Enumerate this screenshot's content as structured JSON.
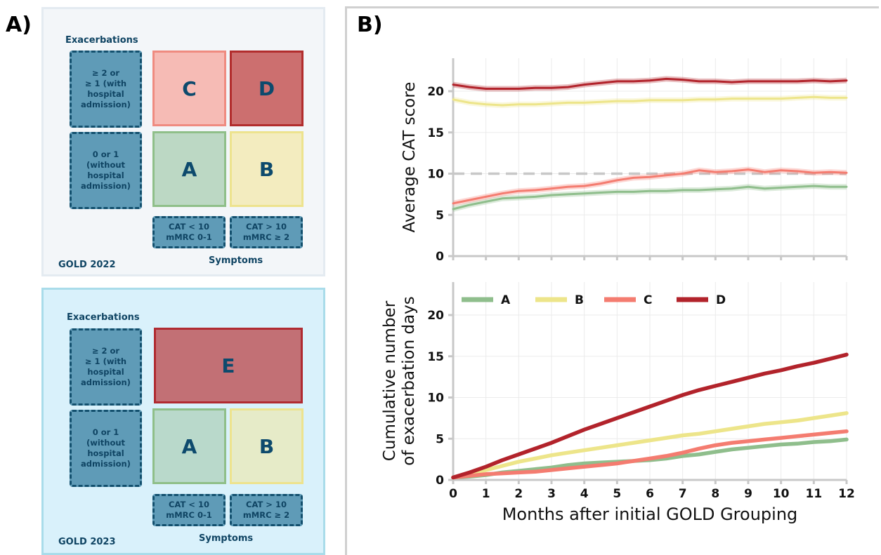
{
  "panel_a": {
    "letter": "A)",
    "gold_2022": {
      "title": "GOLD 2022",
      "exacerbations_label": "Exacerbations",
      "symptoms_label": "Symptoms",
      "row_high": "≥ 2 or\n≥ 1 (with\nhospital\nadmission)",
      "row_low": "0 or 1\n(without\nhospital\nadmission)",
      "col_low": "CAT < 10\nmMRC 0-1",
      "col_high": "CAT > 10\nmMRC ≥ 2",
      "cells": {
        "c": "C",
        "d": "D",
        "a": "A",
        "b": "B"
      }
    },
    "gold_2023": {
      "title": "GOLD 2023",
      "exacerbations_label": "Exacerbations",
      "symptoms_label": "Symptoms",
      "row_high": "≥ 2 or\n≥ 1 (with\nhospital\nadmission)",
      "row_low": "0 or 1\n(without\nhospital\nadmission)",
      "col_low": "CAT < 10\nmMRC 0-1",
      "col_high": "CAT > 10\nmMRC ≥ 2",
      "cells": {
        "e": "E",
        "a": "A",
        "b": "B"
      }
    }
  },
  "colors": {
    "A": "#8fbe8c",
    "B": "#ede58a",
    "C": "#f47c70",
    "D": "#b2232b",
    "reference_line": "#c8c8c8"
  },
  "chart_data": [
    {
      "type": "line",
      "panel": "B)",
      "ylabel": "Average CAT score",
      "xlabel": "",
      "ylim": [
        0,
        24
      ],
      "xlim": [
        0,
        12
      ],
      "yticks": [
        0,
        5,
        10,
        15,
        20
      ],
      "grid": true,
      "reference_line": {
        "y": 10,
        "style": "dashed"
      },
      "x": [
        0,
        0.5,
        1,
        1.5,
        2,
        2.5,
        3,
        3.5,
        4,
        4.5,
        5,
        5.5,
        6,
        6.5,
        7,
        7.5,
        8,
        8.5,
        9,
        9.5,
        10,
        10.5,
        11,
        11.5,
        12
      ],
      "series": [
        {
          "name": "A",
          "values": [
            5.7,
            6.2,
            6.6,
            7.0,
            7.1,
            7.2,
            7.4,
            7.5,
            7.6,
            7.7,
            7.8,
            7.8,
            7.9,
            7.9,
            8.0,
            8.0,
            8.1,
            8.2,
            8.4,
            8.2,
            8.3,
            8.4,
            8.5,
            8.4,
            8.4
          ]
        },
        {
          "name": "B",
          "values": [
            19.0,
            18.6,
            18.4,
            18.3,
            18.4,
            18.4,
            18.5,
            18.6,
            18.6,
            18.7,
            18.8,
            18.8,
            18.9,
            18.9,
            18.9,
            19.0,
            19.0,
            19.1,
            19.1,
            19.1,
            19.1,
            19.2,
            19.3,
            19.2,
            19.2
          ]
        },
        {
          "name": "C",
          "values": [
            6.4,
            6.8,
            7.2,
            7.6,
            7.9,
            8.0,
            8.2,
            8.4,
            8.5,
            8.8,
            9.2,
            9.5,
            9.6,
            9.8,
            10.0,
            10.4,
            10.2,
            10.3,
            10.5,
            10.2,
            10.4,
            10.3,
            10.1,
            10.2,
            10.1
          ]
        },
        {
          "name": "D",
          "values": [
            20.8,
            20.5,
            20.3,
            20.3,
            20.3,
            20.4,
            20.4,
            20.5,
            20.8,
            21.0,
            21.2,
            21.2,
            21.3,
            21.5,
            21.4,
            21.2,
            21.2,
            21.1,
            21.2,
            21.2,
            21.2,
            21.2,
            21.3,
            21.2,
            21.3
          ]
        }
      ]
    },
    {
      "type": "line",
      "ylabel": "Cumulative number\nof exacerbation days",
      "xlabel": "Months after initial GOLD Grouping",
      "ylim": [
        0,
        24
      ],
      "xlim": [
        0,
        12
      ],
      "yticks": [
        0,
        5,
        10,
        15,
        20
      ],
      "xticks": [
        0,
        1,
        2,
        3,
        4,
        5,
        6,
        7,
        8,
        9,
        10,
        11,
        12
      ],
      "grid": true,
      "legend_position": "top",
      "x": [
        0,
        0.5,
        1,
        1.5,
        2,
        2.5,
        3,
        3.5,
        4,
        4.5,
        5,
        5.5,
        6,
        6.5,
        7,
        7.5,
        8,
        8.5,
        9,
        9.5,
        10,
        10.5,
        11,
        11.5,
        12
      ],
      "series": [
        {
          "name": "A",
          "values": [
            0.3,
            0.4,
            0.6,
            0.9,
            1.1,
            1.3,
            1.5,
            1.8,
            2.0,
            2.1,
            2.2,
            2.3,
            2.4,
            2.6,
            2.9,
            3.1,
            3.4,
            3.7,
            3.9,
            4.1,
            4.3,
            4.4,
            4.6,
            4.7,
            4.9
          ]
        },
        {
          "name": "B",
          "values": [
            0.3,
            0.7,
            1.2,
            1.7,
            2.2,
            2.6,
            3.0,
            3.3,
            3.6,
            3.9,
            4.2,
            4.5,
            4.8,
            5.1,
            5.4,
            5.6,
            5.9,
            6.2,
            6.5,
            6.8,
            7.0,
            7.2,
            7.5,
            7.8,
            8.1
          ]
        },
        {
          "name": "C",
          "values": [
            0.3,
            0.5,
            0.7,
            0.8,
            0.9,
            1.0,
            1.2,
            1.4,
            1.6,
            1.8,
            2.0,
            2.3,
            2.6,
            2.9,
            3.3,
            3.8,
            4.2,
            4.5,
            4.7,
            4.9,
            5.1,
            5.3,
            5.5,
            5.7,
            5.9
          ]
        },
        {
          "name": "D",
          "values": [
            0.3,
            0.9,
            1.6,
            2.4,
            3.1,
            3.8,
            4.5,
            5.3,
            6.1,
            6.8,
            7.5,
            8.2,
            8.9,
            9.6,
            10.3,
            10.9,
            11.4,
            11.9,
            12.4,
            12.9,
            13.3,
            13.8,
            14.2,
            14.7,
            15.2
          ]
        }
      ]
    }
  ]
}
